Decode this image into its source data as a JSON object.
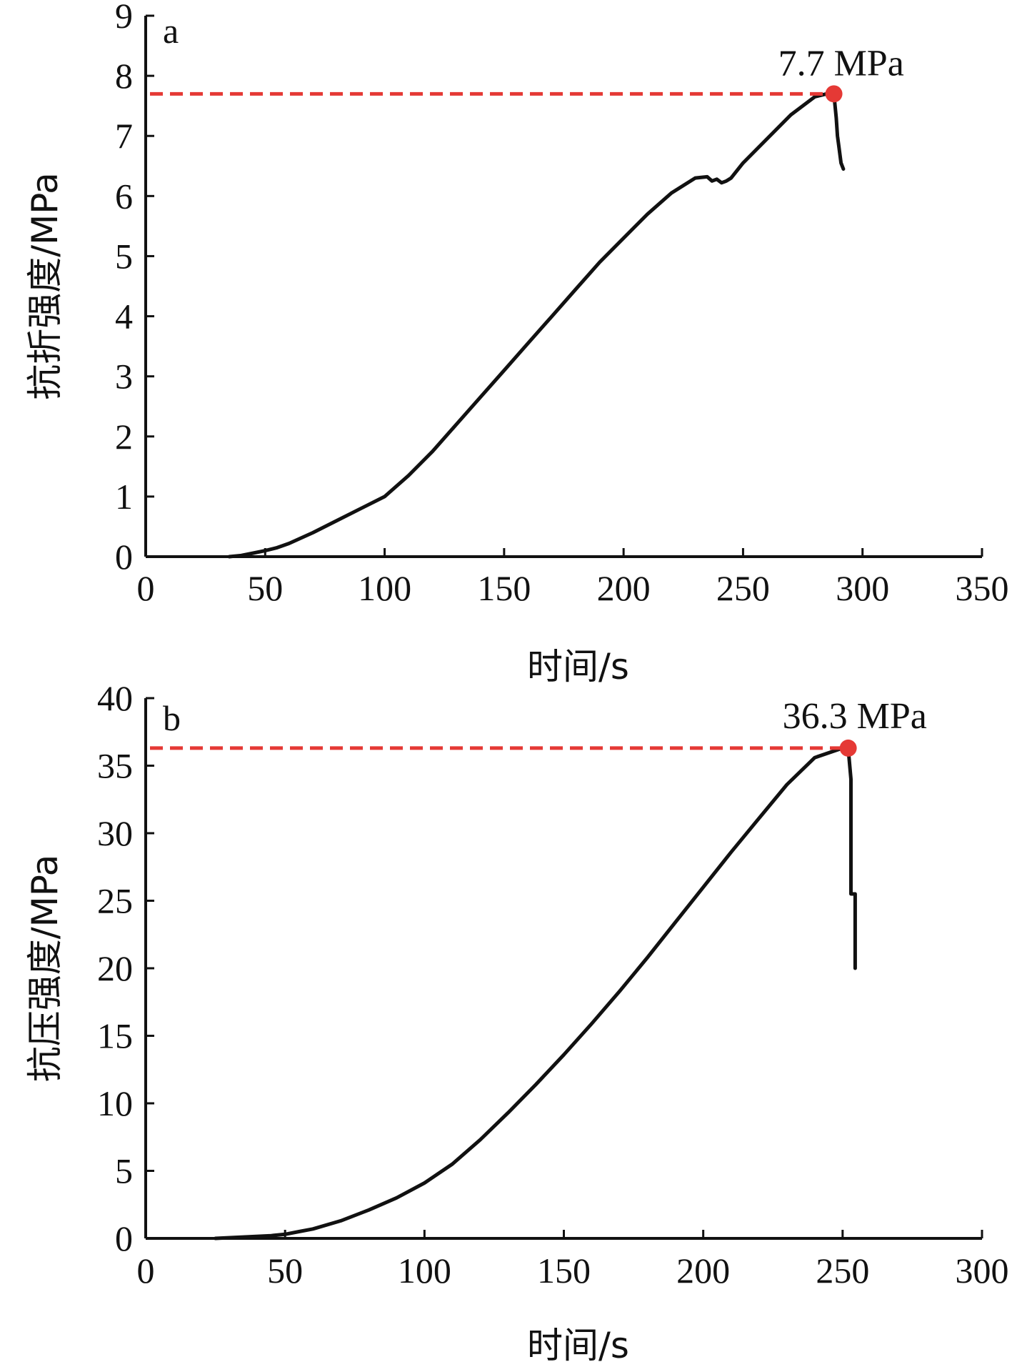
{
  "chart_data": [
    {
      "type": "line",
      "panel_label": "a",
      "xlabel": "时间/s",
      "ylabel": "抗折强度/MPa",
      "xlim": [
        0,
        350
      ],
      "ylim": [
        0,
        9
      ],
      "xticks": [
        0,
        50,
        100,
        150,
        200,
        250,
        300,
        350
      ],
      "yticks": [
        0,
        1,
        2,
        3,
        4,
        5,
        6,
        7,
        8,
        9
      ],
      "grid": false,
      "series": [
        {
          "color": "#111111",
          "x": [
            35,
            40,
            45,
            50,
            55,
            60,
            70,
            80,
            90,
            100,
            110,
            120,
            130,
            140,
            150,
            160,
            170,
            180,
            190,
            200,
            210,
            220,
            230,
            235,
            237,
            239,
            241,
            243,
            245,
            250,
            260,
            270,
            280,
            285,
            288,
            289,
            289.5,
            290,
            291,
            292
          ],
          "y": [
            0,
            0.02,
            0.06,
            0.1,
            0.15,
            0.22,
            0.4,
            0.6,
            0.8,
            1.0,
            1.35,
            1.75,
            2.2,
            2.65,
            3.1,
            3.55,
            4.0,
            4.45,
            4.9,
            5.3,
            5.7,
            6.05,
            6.3,
            6.32,
            6.25,
            6.28,
            6.22,
            6.25,
            6.3,
            6.55,
            6.95,
            7.35,
            7.65,
            7.7,
            7.7,
            7.3,
            7.0,
            6.85,
            6.55,
            6.45
          ]
        }
      ],
      "peak": {
        "x": 288,
        "y": 7.7,
        "label": "7.7 MPa",
        "color": "#e53935"
      }
    },
    {
      "type": "line",
      "panel_label": "b",
      "xlabel": "时间/s",
      "ylabel": "抗压强度/MPa",
      "xlim": [
        0,
        300
      ],
      "ylim": [
        0,
        40
      ],
      "xticks": [
        0,
        50,
        100,
        150,
        200,
        250,
        300
      ],
      "yticks": [
        0,
        5,
        10,
        15,
        20,
        25,
        30,
        35,
        40
      ],
      "grid": false,
      "series": [
        {
          "color": "#111111",
          "x": [
            25,
            35,
            45,
            50,
            55,
            60,
            70,
            80,
            90,
            100,
            110,
            120,
            130,
            140,
            150,
            160,
            170,
            180,
            190,
            200,
            210,
            220,
            230,
            240,
            250,
            252,
            253,
            253,
            254.5,
            254.5
          ],
          "y": [
            0,
            0.1,
            0.2,
            0.3,
            0.5,
            0.7,
            1.3,
            2.1,
            3.0,
            4.1,
            5.5,
            7.3,
            9.3,
            11.4,
            13.6,
            15.9,
            18.3,
            20.8,
            23.4,
            26.0,
            28.6,
            31.1,
            33.6,
            35.6,
            36.3,
            36.3,
            34.0,
            25.5,
            25.5,
            20.0
          ]
        }
      ],
      "peak": {
        "x": 252,
        "y": 36.3,
        "label": "36.3 MPa",
        "color": "#e53935"
      }
    }
  ]
}
